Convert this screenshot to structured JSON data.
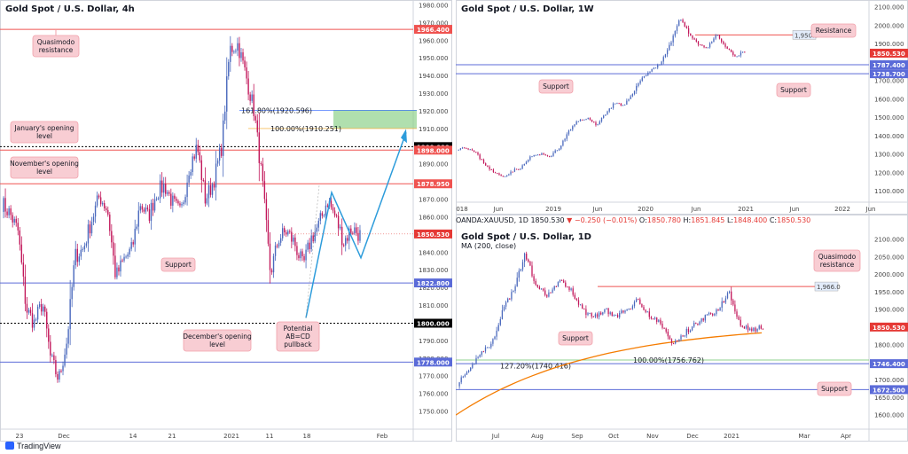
{
  "footer": {
    "brand": "TradingView"
  },
  "ohlc_bar": {
    "symbol": "OANDA:XAUUSD, 1D",
    "price": "1850.530",
    "change": "▼ −0.250 (−0.01%)",
    "o_label": "O:",
    "o": "1850.780",
    "h_label": "H:",
    "h": "1851.845",
    "l_label": "L:",
    "l": "1848.400",
    "c_label": "C:",
    "c": "1850.530"
  },
  "colors": {
    "bull": "#4a69bd",
    "bear": "#c2185b",
    "resistance": "#ef5350",
    "support": "#5b6bd8",
    "zone": "#8fd18c",
    "ma": "#f57c00",
    "abcd": "#2d9cdb"
  },
  "chart_data": [
    {
      "id": "h4",
      "type": "candlestick",
      "title": "Gold Spot / U.S. Dollar, 4h",
      "ylim": [
        1740,
        1982
      ],
      "y_ticks": [
        1980,
        1970,
        1960,
        1950,
        1940,
        1930,
        1920,
        1910,
        1900,
        1890,
        1880,
        1870,
        1860,
        1850,
        1840,
        1830,
        1820,
        1810,
        1800,
        1790,
        1780,
        1770,
        1760,
        1750
      ],
      "x_ticks": [
        "23",
        "Dec",
        "14",
        "21",
        "2021",
        "11",
        "18",
        "Feb"
      ],
      "levels": [
        {
          "value": 1966.4,
          "label": "1966.400",
          "color": "#ef5350",
          "kind": "resistance",
          "text": "Quasimodo\nresistance"
        },
        {
          "value": 1900.0,
          "label": "1900.000",
          "color": "#000000",
          "kind": "psych",
          "text": ""
        },
        {
          "value": 1898.0,
          "label": "1898.000",
          "color": "#ef5350",
          "kind": "resistance",
          "text": "January's opening\nlevel"
        },
        {
          "value": 1878.95,
          "label": "1878.950",
          "color": "#ef5350",
          "kind": "resistance",
          "text": "November's opening\nlevel"
        },
        {
          "value": 1822.8,
          "label": "1822.800",
          "color": "#5b6bd8",
          "kind": "support",
          "text": "Support"
        },
        {
          "value": 1800.0,
          "label": "1800.000",
          "color": "#000000",
          "kind": "psych",
          "text": ""
        },
        {
          "value": 1778.0,
          "label": "1778.000",
          "color": "#5b6bd8",
          "kind": "support",
          "text": "December's opening\nlevel"
        }
      ],
      "last_price": "1850.530",
      "fib": [
        {
          "text": "161.80%(1920.596)",
          "value": 1920.596,
          "color": "#2962ff"
        },
        {
          "text": "100.00%(1910.251)",
          "value": 1910.251,
          "color": "#f5a623"
        }
      ],
      "annotation": "Potential\nAB=CD\npullback"
    },
    {
      "id": "w1",
      "type": "candlestick",
      "title": "Gold Spot / U.S. Dollar, 1W",
      "ylim": [
        1040,
        2130
      ],
      "y_ticks": [
        2100,
        2000,
        1900,
        1800,
        1700,
        1600,
        1500,
        1400,
        1300,
        1200,
        1100
      ],
      "x_ticks": [
        "018",
        "Jun",
        "2019",
        "Jun",
        "2020",
        "Jun",
        "2021",
        "Jun",
        "2022",
        "Jun"
      ],
      "levels": [
        {
          "value": 1950.0,
          "label": "1,950.0",
          "color": "#ef5350",
          "kind": "resistance",
          "text": "Resistance"
        },
        {
          "value": 1787.4,
          "label": "1787.400",
          "color": "#5b6bd8",
          "kind": "support",
          "text": "Support"
        },
        {
          "value": 1738.7,
          "label": "1738.700",
          "color": "#5b6bd8",
          "kind": "support",
          "text": "Support"
        }
      ],
      "last_price": "1850.530"
    },
    {
      "id": "d1",
      "type": "candlestick",
      "title": "Gold Spot / U.S. Dollar, 1D",
      "indicator": "MA (200, close)",
      "ylim": [
        1560,
        2115
      ],
      "y_ticks": [
        2100,
        2050,
        2000,
        1950,
        1900,
        1850,
        1800,
        1750,
        1700,
        1650,
        1600
      ],
      "x_ticks": [
        "Jul",
        "Aug",
        "Sep",
        "Oct",
        "Nov",
        "Dec",
        "2021",
        "Mar",
        "Apr"
      ],
      "levels": [
        {
          "value": 1966.0,
          "label": "1,966.0",
          "color": "#ef5350",
          "kind": "resistance",
          "text": "Quasimodo\nresistance"
        },
        {
          "value": 1746.4,
          "label": "1746.400",
          "color": "#5b6bd8",
          "kind": "support",
          "text": "Support"
        },
        {
          "value": 1672.5,
          "label": "1672.500",
          "color": "#5b6bd8",
          "kind": "support",
          "text": "Support"
        }
      ],
      "last_price": "1850.530",
      "fib": [
        {
          "text": "127.20%(1740.416)",
          "value": 1740.416,
          "color": "#2962ff"
        },
        {
          "text": "100.00%(1756.762)",
          "value": 1756.762,
          "color": "#f5a623"
        }
      ]
    }
  ]
}
